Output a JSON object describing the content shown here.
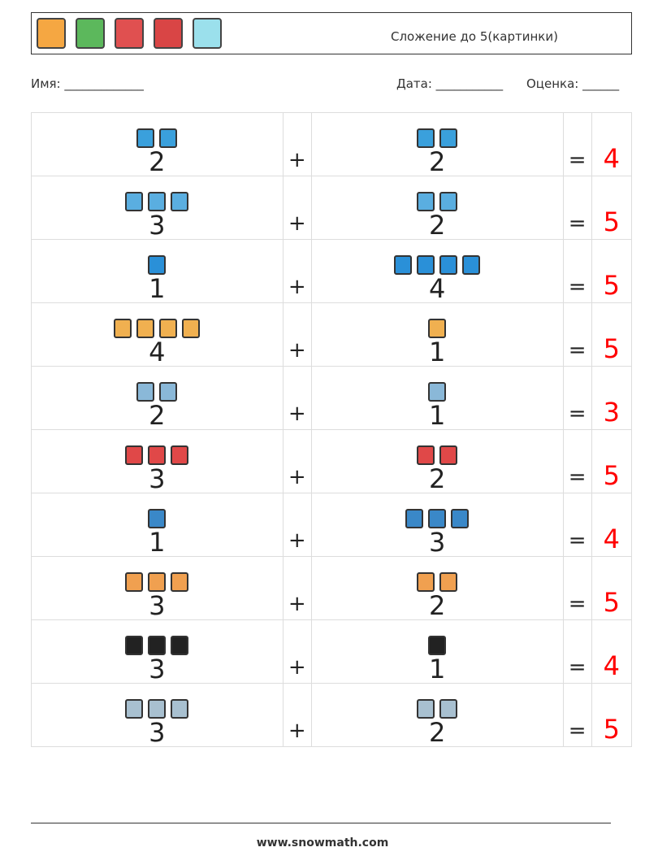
{
  "header": {
    "title": "Сложение до 5(картинки)",
    "icons": [
      {
        "name": "house-icon",
        "color": "#f5a742"
      },
      {
        "name": "calendar-icon",
        "color": "#5cb85c"
      },
      {
        "name": "candles-icon",
        "color": "#e05050"
      },
      {
        "name": "gift-icon",
        "color": "#d94545"
      },
      {
        "name": "snow-globe-icon",
        "color": "#9be0ec"
      }
    ]
  },
  "meta": {
    "name": "Имя: _____________",
    "date": "Дата: ___________",
    "grade": "Оценка: ______"
  },
  "rows": [
    {
      "a": "2",
      "b": "2",
      "ans": "4",
      "icon": "robot-head-icon",
      "color": "#3aa0dc"
    },
    {
      "a": "3",
      "b": "2",
      "ans": "5",
      "icon": "coffee-machine-icon",
      "color": "#5aaee0"
    },
    {
      "a": "1",
      "b": "4",
      "ans": "5",
      "icon": "robot-icon",
      "color": "#2a90d8"
    },
    {
      "a": "4",
      "b": "1",
      "ans": "5",
      "icon": "farmer-icon",
      "color": "#f0b050"
    },
    {
      "a": "2",
      "b": "1",
      "ans": "3",
      "icon": "radiator-icon",
      "color": "#8ab8d8"
    },
    {
      "a": "3",
      "b": "2",
      "ans": "5",
      "icon": "lollipop-icon",
      "color": "#e04848"
    },
    {
      "a": "1",
      "b": "3",
      "ans": "4",
      "icon": "worker-icon",
      "color": "#3a88c8"
    },
    {
      "a": "3",
      "b": "2",
      "ans": "5",
      "icon": "oven-icon",
      "color": "#f0a050"
    },
    {
      "a": "3",
      "b": "1",
      "ans": "4",
      "icon": "bucket-icon",
      "color": "#222222"
    },
    {
      "a": "3",
      "b": "2",
      "ans": "5",
      "icon": "boot-icon",
      "color": "#a8c0d0"
    }
  ],
  "ops": {
    "plus": "+",
    "equals": "="
  },
  "footer": "www.snowmath.com"
}
